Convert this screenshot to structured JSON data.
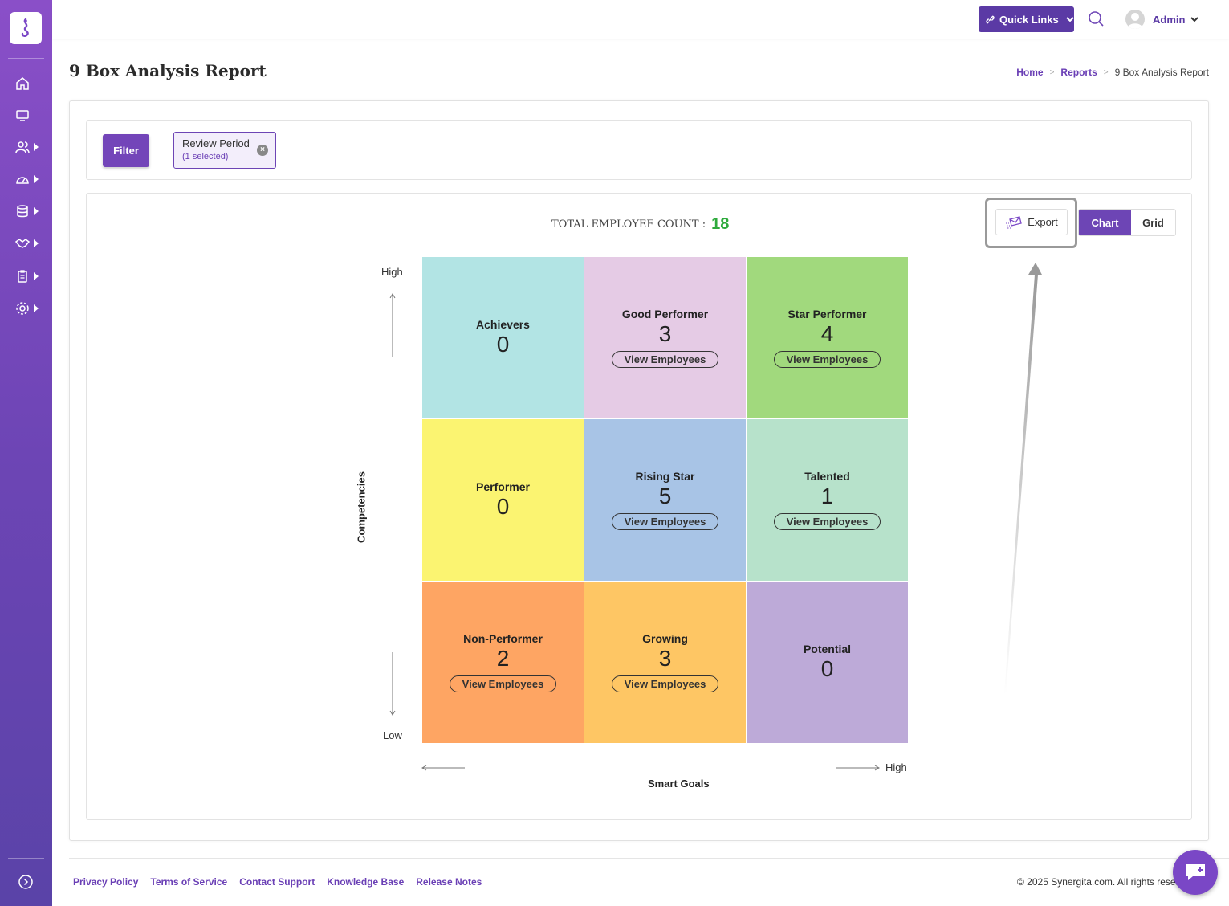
{
  "header": {
    "quick_links_label": "Quick Links",
    "admin_label": "Admin"
  },
  "page": {
    "title": "9 Box Analysis Report",
    "breadcrumb": {
      "home": "Home",
      "reports": "Reports",
      "current": "9 Box Analysis Report"
    }
  },
  "filter": {
    "button_label": "Filter",
    "chip_title": "Review Period",
    "chip_subtitle": "(1 selected)"
  },
  "report": {
    "total_label": "TOTAL EMPLOYEE COUNT :",
    "total_value": "18",
    "export_label": "Export",
    "view_chart": "Chart",
    "view_grid": "Grid",
    "y_axis_title": "Competencies",
    "x_axis_title": "Smart Goals",
    "y_high": "High",
    "y_low": "Low",
    "x_high": "High",
    "view_employees_label": "View Employees",
    "boxes": [
      {
        "name": "Achievers",
        "count": "0",
        "color": "#b2e4e4",
        "has_view": false
      },
      {
        "name": "Good Performer",
        "count": "3",
        "color": "#e5cbe5",
        "has_view": true
      },
      {
        "name": "Star Performer",
        "count": "4",
        "color": "#a1d97d",
        "has_view": true
      },
      {
        "name": "Performer",
        "count": "0",
        "color": "#fbf471",
        "has_view": false
      },
      {
        "name": "Rising Star",
        "count": "5",
        "color": "#a8c4e6",
        "has_view": true
      },
      {
        "name": "Talented",
        "count": "1",
        "color": "#b7e2cb",
        "has_view": true
      },
      {
        "name": "Non-Performer",
        "count": "2",
        "color": "#fea563",
        "has_view": true
      },
      {
        "name": "Growing",
        "count": "3",
        "color": "#fec664",
        "has_view": true
      },
      {
        "name": "Potential",
        "count": "0",
        "color": "#bdaad8",
        "has_view": false
      }
    ]
  },
  "footer": {
    "links": [
      "Privacy Policy",
      "Terms of Service",
      "Contact Support",
      "Knowledge Base",
      "Release Notes"
    ],
    "copyright": "© 2025 Synergita.com. All rights reserved."
  }
}
